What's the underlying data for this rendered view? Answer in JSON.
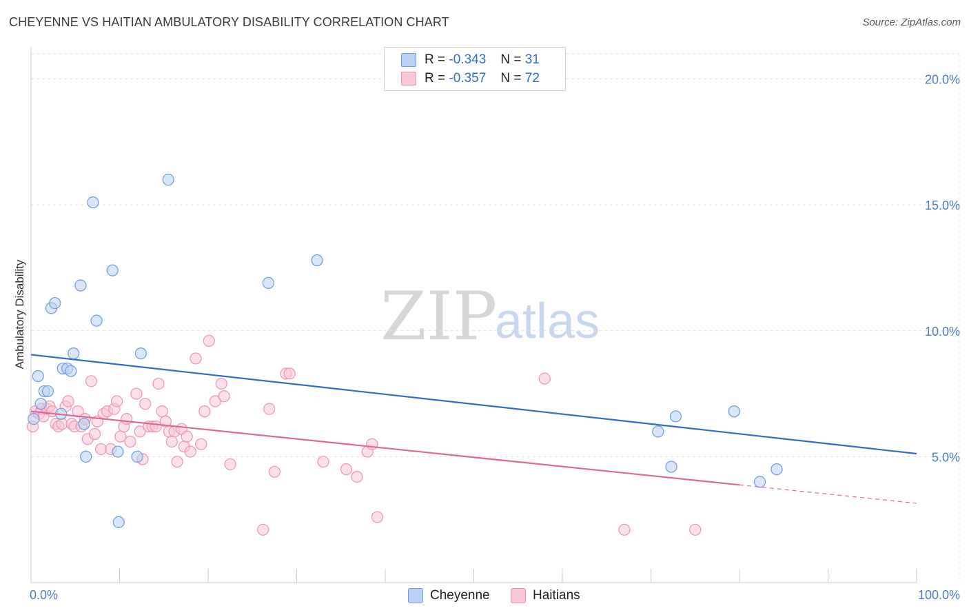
{
  "title": "CHEYENNE VS HAITIAN AMBULATORY DISABILITY CORRELATION CHART",
  "source": "Source: ZipAtlas.com",
  "watermark": {
    "zip": "ZIP",
    "atlas": "atlas"
  },
  "legend": {
    "series1": {
      "r_label": "R =",
      "r_value": "-0.343",
      "n_label": "N =",
      "n_value": "31"
    },
    "series2": {
      "r_label": "R =",
      "r_value": "-0.357",
      "n_label": "N =",
      "n_value": "72"
    }
  },
  "bottom_legend": {
    "series1": "Cheyenne",
    "series2": "Haitians"
  },
  "chart_data": {
    "type": "scatter",
    "title": "CHEYENNE VS HAITIAN AMBULATORY DISABILITY CORRELATION CHART",
    "xlabel": "",
    "ylabel": "Ambulatory Disability",
    "xlim": [
      0,
      100
    ],
    "ylim": [
      0,
      21
    ],
    "x_tick_labels": [
      "0.0%",
      "100.0%"
    ],
    "y_ticks": [
      5,
      10,
      15,
      20
    ],
    "y_tick_labels": [
      "5.0%",
      "10.0%",
      "15.0%",
      "20.0%"
    ],
    "legend_position": "top-center",
    "series": [
      {
        "name": "Cheyenne",
        "color": "#6a9be0",
        "fill": "#b9d1f2",
        "line_color": "#2f6cc7",
        "r": -0.343,
        "n": 31,
        "trend": {
          "x": [
            0,
            100
          ],
          "y": [
            9.05,
            5.12
          ]
        },
        "points": [
          [
            0.3,
            6.5
          ],
          [
            0.8,
            8.2
          ],
          [
            1.1,
            7.1
          ],
          [
            1.5,
            7.6
          ],
          [
            1.9,
            7.6
          ],
          [
            2.3,
            10.9
          ],
          [
            2.7,
            11.1
          ],
          [
            3.4,
            6.7
          ],
          [
            3.6,
            8.5
          ],
          [
            4.1,
            8.5
          ],
          [
            4.5,
            8.4
          ],
          [
            4.8,
            9.1
          ],
          [
            5.6,
            11.8
          ],
          [
            6.0,
            6.3
          ],
          [
            6.2,
            5.0
          ],
          [
            7.0,
            15.1
          ],
          [
            7.4,
            10.4
          ],
          [
            9.2,
            12.4
          ],
          [
            9.8,
            5.2
          ],
          [
            9.9,
            2.4
          ],
          [
            12.0,
            5.0
          ],
          [
            12.4,
            9.1
          ],
          [
            15.5,
            16.0
          ],
          [
            26.8,
            11.9
          ],
          [
            32.3,
            12.8
          ],
          [
            70.8,
            6.0
          ],
          [
            72.3,
            4.6
          ],
          [
            72.8,
            6.6
          ],
          [
            79.4,
            6.8
          ],
          [
            82.3,
            4.0
          ],
          [
            84.2,
            4.5
          ]
        ]
      },
      {
        "name": "Haitians",
        "color": "#ec94b2",
        "fill": "#f8c6d6",
        "line_color": "#e0669a",
        "r": -0.357,
        "n": 72,
        "trend": {
          "x": [
            0,
            80
          ],
          "y": [
            6.8,
            3.88
          ]
        },
        "trend_dashed": {
          "x": [
            80,
            100
          ],
          "y": [
            3.88,
            3.15
          ]
        },
        "points": [
          [
            0.2,
            6.2
          ],
          [
            0.5,
            6.8
          ],
          [
            0.9,
            6.7
          ],
          [
            1.2,
            6.9
          ],
          [
            1.4,
            6.6
          ],
          [
            1.8,
            6.9
          ],
          [
            2.1,
            7.0
          ],
          [
            2.4,
            6.8
          ],
          [
            2.8,
            6.3
          ],
          [
            3.1,
            6.2
          ],
          [
            3.5,
            6.3
          ],
          [
            3.9,
            7.0
          ],
          [
            4.2,
            7.2
          ],
          [
            4.6,
            6.3
          ],
          [
            4.9,
            6.2
          ],
          [
            5.3,
            6.8
          ],
          [
            5.7,
            6.2
          ],
          [
            6.1,
            6.5
          ],
          [
            6.4,
            5.7
          ],
          [
            6.8,
            8.0
          ],
          [
            7.2,
            5.9
          ],
          [
            7.5,
            6.4
          ],
          [
            7.9,
            5.3
          ],
          [
            8.2,
            6.7
          ],
          [
            8.6,
            6.8
          ],
          [
            9.0,
            5.3
          ],
          [
            9.4,
            6.9
          ],
          [
            9.7,
            7.2
          ],
          [
            10.1,
            5.8
          ],
          [
            10.5,
            6.2
          ],
          [
            10.8,
            6.5
          ],
          [
            11.2,
            5.6
          ],
          [
            11.9,
            7.5
          ],
          [
            12.3,
            6.0
          ],
          [
            12.6,
            4.9
          ],
          [
            12.9,
            7.1
          ],
          [
            13.3,
            6.2
          ],
          [
            13.7,
            6.2
          ],
          [
            14.1,
            6.2
          ],
          [
            14.4,
            7.9
          ],
          [
            14.8,
            6.8
          ],
          [
            15.2,
            6.4
          ],
          [
            15.6,
            6.0
          ],
          [
            15.9,
            5.6
          ],
          [
            16.2,
            6.0
          ],
          [
            16.5,
            4.8
          ],
          [
            17.0,
            6.1
          ],
          [
            17.3,
            5.4
          ],
          [
            17.6,
            5.8
          ],
          [
            18.0,
            5.2
          ],
          [
            18.6,
            8.9
          ],
          [
            19.2,
            5.5
          ],
          [
            19.6,
            6.8
          ],
          [
            20.1,
            9.6
          ],
          [
            20.8,
            7.2
          ],
          [
            21.5,
            7.9
          ],
          [
            21.8,
            7.4
          ],
          [
            22.5,
            4.7
          ],
          [
            26.2,
            2.1
          ],
          [
            26.9,
            6.9
          ],
          [
            27.5,
            4.4
          ],
          [
            28.8,
            8.3
          ],
          [
            29.2,
            8.3
          ],
          [
            33.0,
            4.8
          ],
          [
            35.6,
            4.5
          ],
          [
            36.8,
            4.2
          ],
          [
            38.0,
            5.2
          ],
          [
            38.5,
            5.5
          ],
          [
            39.1,
            2.6
          ],
          [
            58.0,
            8.1
          ],
          [
            67.0,
            2.1
          ],
          [
            75.0,
            2.1
          ]
        ]
      }
    ]
  }
}
